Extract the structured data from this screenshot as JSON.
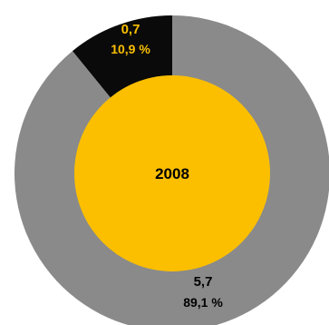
{
  "chart_data": {
    "type": "pie",
    "style": "donut",
    "title": "",
    "center_label": "2008",
    "slices": [
      {
        "value": "5,7",
        "percent_label": "89,1 %",
        "percent": 89.1,
        "color": "#8a8a8a"
      },
      {
        "value": "0,7",
        "percent_label": "10,9 %",
        "percent": 10.9,
        "color": "#0a0a0a"
      }
    ],
    "colors": {
      "center": "#fbbf00",
      "label_on_dark": "#fbbf00",
      "label_on_light": "#000000"
    }
  }
}
